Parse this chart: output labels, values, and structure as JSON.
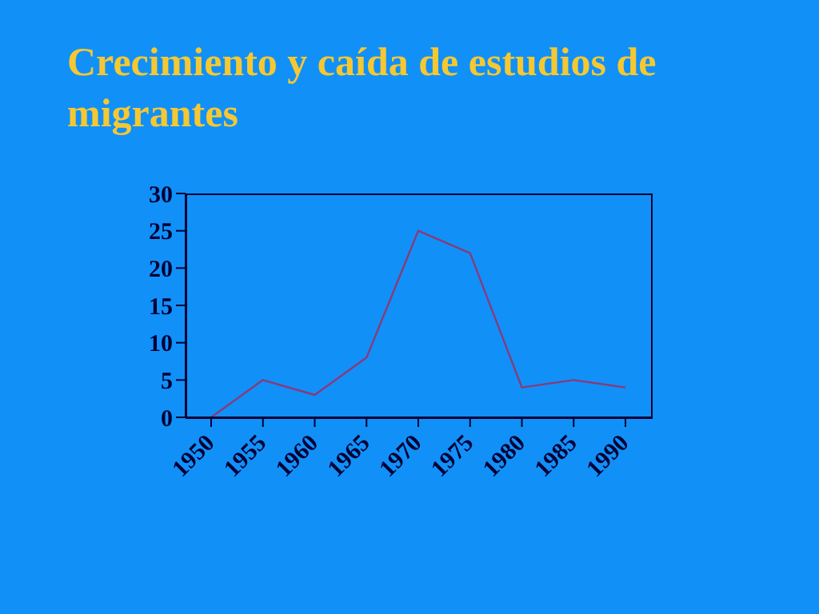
{
  "chart_data": {
    "type": "line",
    "title": "Crecimiento y caída de estudios de migrantes",
    "categories": [
      "1950",
      "1955",
      "1960",
      "1965",
      "1970",
      "1975",
      "1980",
      "1985",
      "1990"
    ],
    "series": [
      {
        "color": "#8b3a78",
        "values": [
          0,
          5,
          3,
          8,
          25,
          22,
          4,
          5,
          4
        ]
      }
    ],
    "ylim": [
      0,
      30
    ],
    "yticks": [
      0,
      5,
      10,
      15,
      20,
      25,
      30
    ],
    "grid": false,
    "marker": "none",
    "line_style": "solid"
  }
}
